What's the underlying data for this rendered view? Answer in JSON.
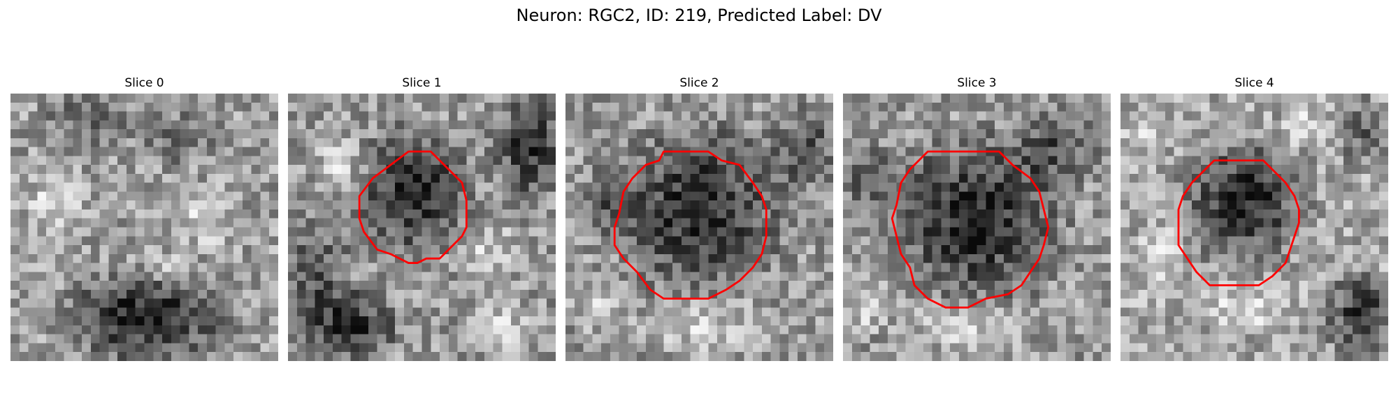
{
  "figure": {
    "title": "Neuron: RGC2, ID: 219, Predicted Label: DV"
  },
  "panels": [
    {
      "title": "Slice 0",
      "has_contour": false
    },
    {
      "title": "Slice 1",
      "has_contour": true
    },
    {
      "title": "Slice 2",
      "has_contour": true
    },
    {
      "title": "Slice 3",
      "has_contour": true
    },
    {
      "title": "Slice 4",
      "has_contour": true
    }
  ],
  "colors": {
    "contour": "#ff0000"
  }
}
